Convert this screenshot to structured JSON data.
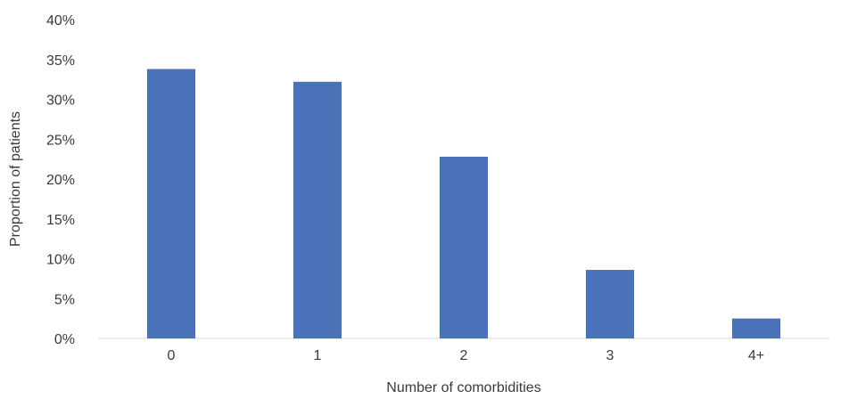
{
  "chart_data": {
    "type": "bar",
    "categories": [
      "0",
      "1",
      "2",
      "3",
      "4+"
    ],
    "values": [
      33.8,
      32.2,
      22.8,
      8.6,
      2.5
    ],
    "title": "",
    "xlabel": "Number of comorbidities",
    "ylabel": "Proportion of patients",
    "ylim": [
      0,
      40
    ],
    "yticks": [
      "0%",
      "5%",
      "10%",
      "15%",
      "20%",
      "25%",
      "30%",
      "35%",
      "40%"
    ],
    "grid": false,
    "legend": "none",
    "bar_color": "#4a72b8",
    "axis_color": "#d9d9d9"
  }
}
